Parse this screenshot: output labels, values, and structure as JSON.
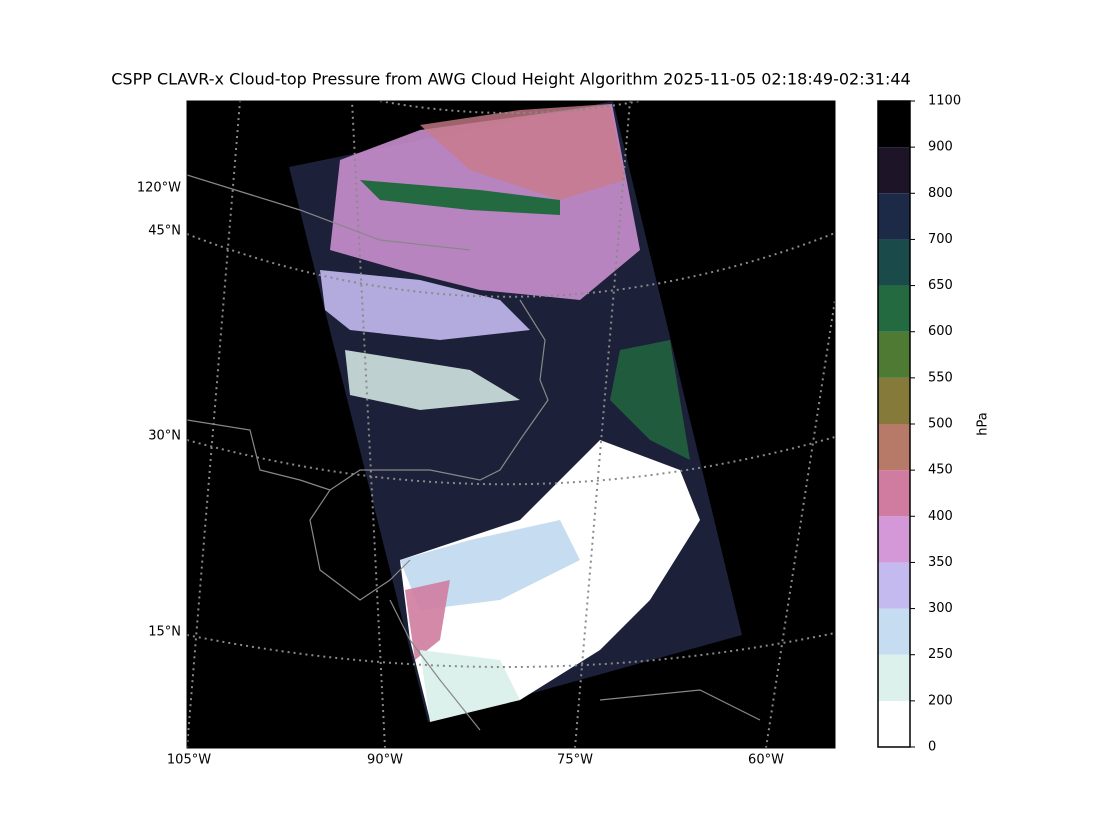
{
  "title": "CSPP CLAVR-x Cloud-top Pressure from AWG Cloud Height Algorithm 2025-11-05 02:18:49-02:31:44",
  "map": {
    "lat_labels": [
      "45°N",
      "30°N",
      "15°N"
    ],
    "lon_labels": [
      "120°W",
      "105°W",
      "90°W",
      "75°W",
      "60°W"
    ]
  },
  "colorbar": {
    "label": "hPa",
    "ticks": [
      0,
      200,
      250,
      300,
      350,
      400,
      450,
      500,
      550,
      600,
      650,
      700,
      800,
      900,
      1100
    ],
    "colors": [
      "#ffffff",
      "#dcf0ec",
      "#c6dcf0",
      "#c4baf0",
      "#d497d8",
      "#d07ca0",
      "#b87a68",
      "#857a3a",
      "#4e7a34",
      "#236a40",
      "#1a4a4a",
      "#1c2a48",
      "#1e1428",
      "#000000"
    ]
  }
}
